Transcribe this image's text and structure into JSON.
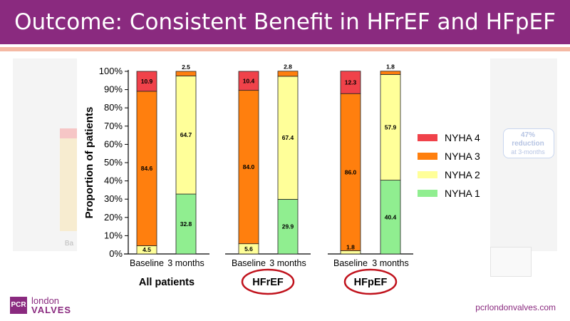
{
  "slide": {
    "title": "Outcome: Consistent Benefit in HFrEF and HFpEF",
    "footer_url": "pcrlondonvalves.com",
    "logo": {
      "mark": "PCR",
      "line1": "london",
      "line2": "VALVES"
    }
  },
  "background_hint": {
    "reduction_pct": "47%",
    "reduction_word": "reduction",
    "reduction_when": "at 3-months",
    "axis_fragment": "Ba"
  },
  "colors": {
    "banner": "#8a2a7f",
    "accent_line": "#f5b9a4",
    "nyha4": "#f0424a",
    "nyha3": "#ff7f0e",
    "nyha2": "#ffff99",
    "nyha1": "#90ee90",
    "circle": "#c0121c"
  },
  "chart_data": {
    "type": "bar",
    "stacked": true,
    "ylabel": "Proportion of patients",
    "ylim": [
      0,
      100
    ],
    "yticks": [
      "0%",
      "10%",
      "20%",
      "30%",
      "40%",
      "50%",
      "60%",
      "70%",
      "80%",
      "90%",
      "100%"
    ],
    "groups": [
      "All patients",
      "HFrEF",
      "HFpEF"
    ],
    "circled_groups": [
      "HFrEF",
      "HFpEF"
    ],
    "categories": [
      "Baseline",
      "3 months",
      "Baseline",
      "3 months",
      "Baseline",
      "3 months"
    ],
    "legend_position": "right",
    "series": [
      {
        "name": "NYHA 1",
        "color": "#90ee90",
        "values": [
          0,
          32.8,
          0,
          29.9,
          0,
          40.4
        ],
        "labels": [
          "",
          "32.8",
          "",
          "29.9",
          "",
          "40.4"
        ]
      },
      {
        "name": "NYHA 2",
        "color": "#ffff99",
        "values": [
          4.5,
          64.7,
          5.6,
          67.4,
          1.8,
          57.9
        ],
        "labels": [
          "4.5",
          "64.7",
          "5.6",
          "67.4",
          "1.8",
          "57.9"
        ]
      },
      {
        "name": "NYHA 3",
        "color": "#ff7f0e",
        "values": [
          84.6,
          2.5,
          84.0,
          2.8,
          86.0,
          1.8
        ],
        "labels": [
          "84.6",
          "2.5",
          "84.0",
          "2.8",
          "86.0",
          "1.8"
        ]
      },
      {
        "name": "NYHA 4",
        "color": "#f0424a",
        "values": [
          10.9,
          0,
          10.4,
          0,
          12.3,
          0
        ],
        "labels": [
          "10.9",
          "",
          "10.4",
          "",
          "12.3",
          ""
        ]
      }
    ],
    "legend_order": [
      "NYHA 4",
      "NYHA 3",
      "NYHA 2",
      "NYHA 1"
    ]
  }
}
